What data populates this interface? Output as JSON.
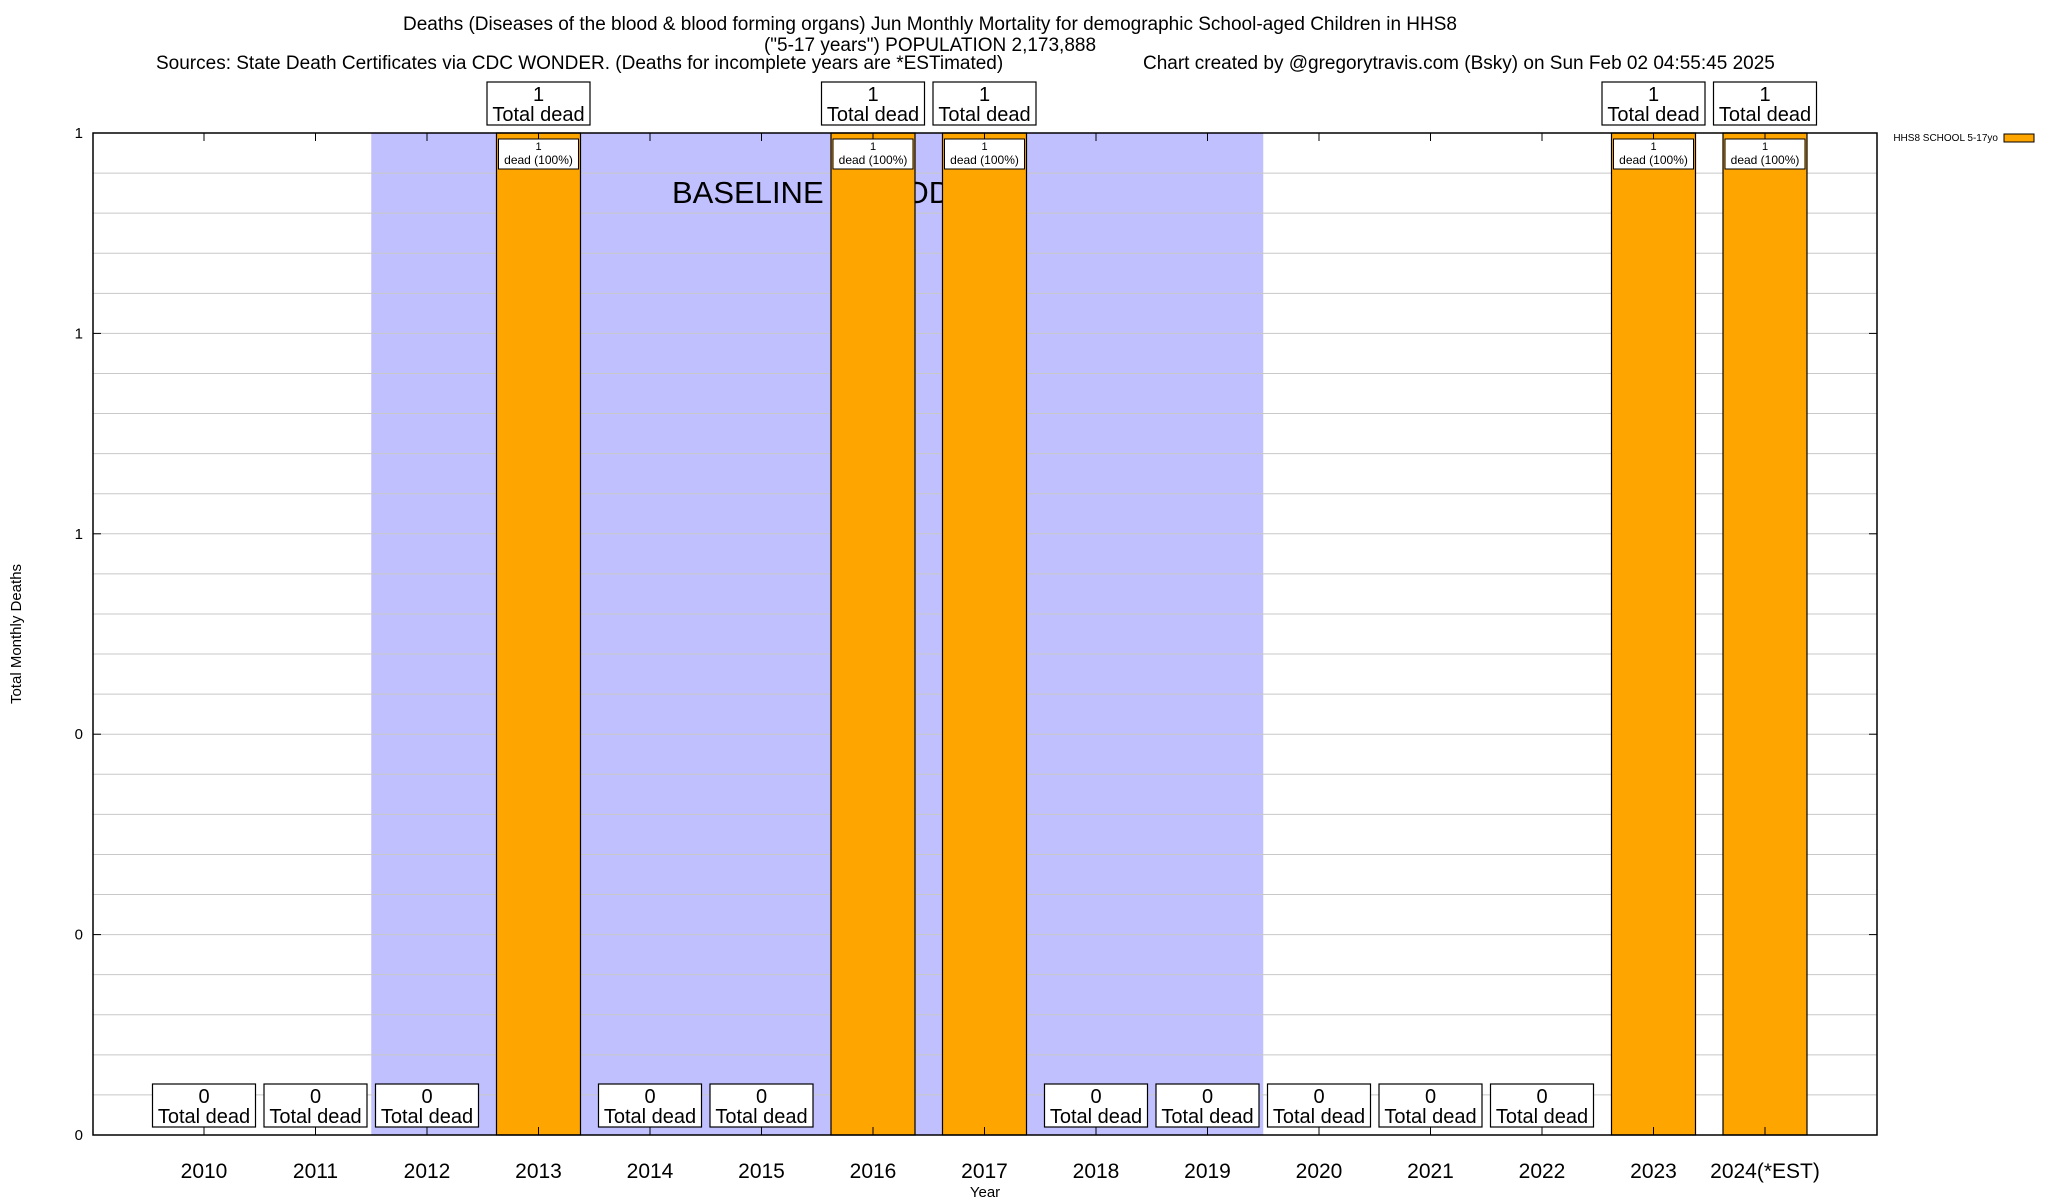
{
  "header": {
    "title_line1": "Deaths (Diseases of the blood & blood forming organs) Jun Monthly Mortality for demographic School-aged Children in HHS8",
    "title_line2": "(\"5-17 years\") POPULATION 2,173,888",
    "sources": "Sources: State Death Certificates via CDC WONDER. (Deaths for incomplete years are *ESTimated)",
    "credit": "Chart created by @gregorytravis.com (Bsky) on Sun Feb 02 04:55:45 2025"
  },
  "chart_data": {
    "type": "bar",
    "xlabel": "Year",
    "ylabel": "Total Monthly Deaths",
    "ylim": [
      0,
      1
    ],
    "y_tick_labels": [
      "0",
      "0",
      "0",
      "1",
      "1",
      "1"
    ],
    "grid": true,
    "legend_position": "top-right",
    "baseline_label": "BASELINE PERIOD",
    "baseline_range": [
      "2012",
      "2019"
    ],
    "categories": [
      "2010",
      "2011",
      "2012",
      "2013",
      "2014",
      "2015",
      "2016",
      "2017",
      "2018",
      "2019",
      "2020",
      "2021",
      "2022",
      "2023",
      "2024(*EST)"
    ],
    "series": [
      {
        "name": "HHS8 SCHOOL 5-17yo",
        "values": [
          0,
          0,
          0,
          1,
          0,
          0,
          1,
          1,
          0,
          0,
          0,
          0,
          0,
          1,
          1
        ]
      }
    ],
    "total_label_text": "Total dead",
    "bar_label_text": "dead (100%)"
  },
  "colors": {
    "bar": "#ffa500",
    "baseline_shade": "#c0c0ff",
    "grid": "#c8c8c8",
    "axis": "#000000"
  }
}
